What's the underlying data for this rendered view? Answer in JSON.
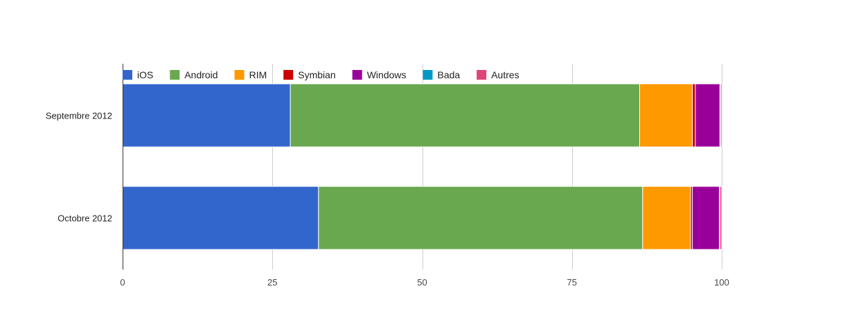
{
  "chart_data": {
    "type": "bar",
    "orientation": "horizontal",
    "stacked": true,
    "categories": [
      "Septembre 2012",
      "Octobre 2012"
    ],
    "series": [
      {
        "name": "iOS",
        "color": "#3366cc",
        "values": [
          28.0,
          32.7
        ]
      },
      {
        "name": "Android",
        "color": "#6aa84f",
        "values": [
          58.3,
          54.1
        ]
      },
      {
        "name": "RIM",
        "color": "#ff9900",
        "values": [
          8.8,
          8.0
        ]
      },
      {
        "name": "Symbian",
        "color": "#cc0000",
        "values": [
          0.5,
          0.3
        ]
      },
      {
        "name": "Windows",
        "color": "#990099",
        "values": [
          4.1,
          4.5
        ]
      },
      {
        "name": "Bada",
        "color": "#0099c6",
        "values": [
          0.1,
          0.1
        ]
      },
      {
        "name": "Autres",
        "color": "#dd4477",
        "values": [
          0.2,
          0.3
        ]
      }
    ],
    "xlim": [
      0,
      100
    ],
    "xticks": [
      "0",
      "25",
      "50",
      "75",
      "100"
    ],
    "grid": true,
    "legend_position": "top"
  }
}
